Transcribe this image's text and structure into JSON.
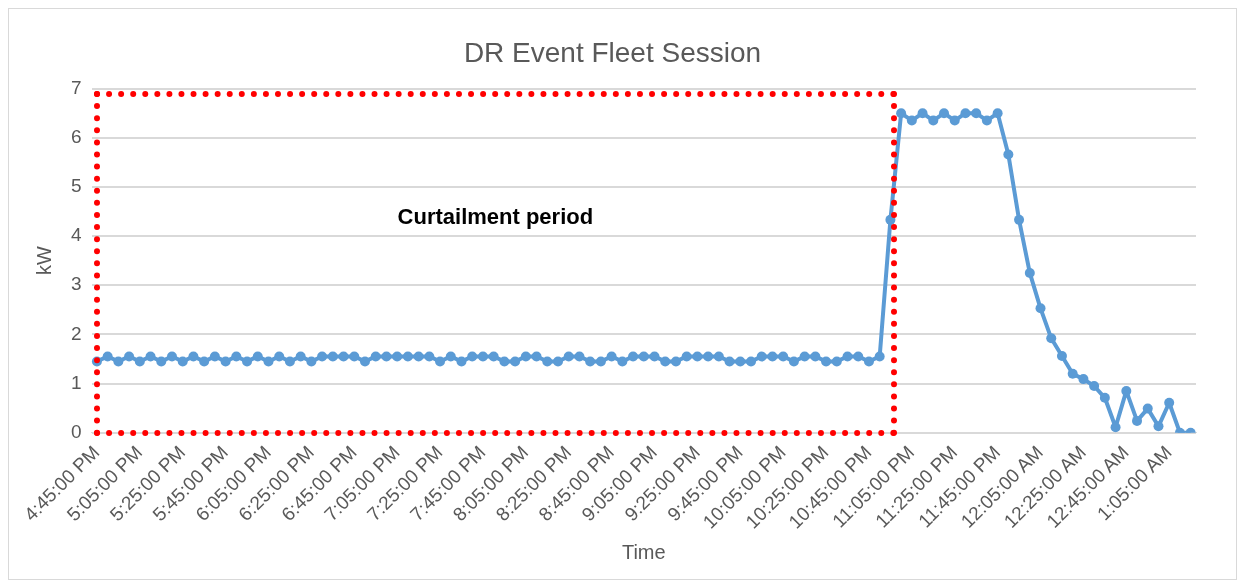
{
  "chart_data": {
    "type": "line",
    "title": "DR Event Fleet Session",
    "xlabel": "Time",
    "ylabel": "kW",
    "categories": [
      "4:45:00 PM",
      null,
      null,
      null,
      "5:05:00 PM",
      null,
      null,
      null,
      "5:25:00 PM",
      null,
      null,
      null,
      "5:45:00 PM",
      null,
      null,
      null,
      "6:05:00 PM",
      null,
      null,
      null,
      "6:25:00 PM",
      null,
      null,
      null,
      "6:45:00 PM",
      null,
      null,
      null,
      "7:05:00 PM",
      null,
      null,
      null,
      "7:25:00 PM",
      null,
      null,
      null,
      "7:45:00 PM",
      null,
      null,
      null,
      "8:05:00 PM",
      null,
      null,
      null,
      "8:25:00 PM",
      null,
      null,
      null,
      "8:45:00 PM",
      null,
      null,
      null,
      "9:05:00 PM",
      null,
      null,
      null,
      "9:25:00 PM",
      null,
      null,
      null,
      "9:45:00 PM",
      null,
      null,
      null,
      "10:05:00 PM",
      null,
      null,
      null,
      "10:25:00 PM",
      null,
      null,
      null,
      "10:45:00 PM",
      null,
      null,
      null,
      "11:05:00 PM",
      null,
      null,
      null,
      "11:25:00 PM",
      null,
      null,
      null,
      "11:45:00 PM",
      null,
      null,
      null,
      "12:05:00 AM",
      null,
      null,
      null,
      "12:25:00 AM",
      null,
      null,
      null,
      "12:45:00 AM",
      null,
      null,
      null,
      "1:05:00 AM",
      null,
      null
    ],
    "series": [
      {
        "color": "#5b9bd5",
        "values": [
          1.45,
          1.55,
          1.45,
          1.55,
          1.45,
          1.55,
          1.45,
          1.55,
          1.45,
          1.55,
          1.45,
          1.55,
          1.45,
          1.55,
          1.45,
          1.55,
          1.45,
          1.55,
          1.45,
          1.55,
          1.45,
          1.55,
          1.55,
          1.55,
          1.55,
          1.45,
          1.55,
          1.55,
          1.55,
          1.55,
          1.55,
          1.55,
          1.45,
          1.55,
          1.45,
          1.55,
          1.55,
          1.55,
          1.45,
          1.45,
          1.55,
          1.55,
          1.45,
          1.45,
          1.55,
          1.55,
          1.45,
          1.45,
          1.55,
          1.45,
          1.55,
          1.55,
          1.55,
          1.45,
          1.45,
          1.55,
          1.55,
          1.55,
          1.55,
          1.45,
          1.45,
          1.45,
          1.55,
          1.55,
          1.55,
          1.45,
          1.55,
          1.55,
          1.45,
          1.45,
          1.55,
          1.55,
          1.45,
          1.55,
          4.33,
          6.5,
          6.35,
          6.5,
          6.35,
          6.5,
          6.35,
          6.5,
          6.5,
          6.35,
          6.5,
          5.66,
          4.33,
          3.25,
          2.53,
          1.92,
          1.56,
          1.2,
          1.09,
          0.95,
          0.71,
          0.11,
          0.85,
          0.24,
          0.49,
          0.13,
          0.61,
          0,
          0
        ]
      }
    ],
    "ylim": [
      0,
      7
    ],
    "yticks": [
      0,
      1,
      2,
      3,
      4,
      5,
      6,
      7
    ],
    "annotations": [
      "Curtailment period"
    ],
    "grid": "y",
    "marker": "circle",
    "line_style": "solid",
    "legend": false
  }
}
